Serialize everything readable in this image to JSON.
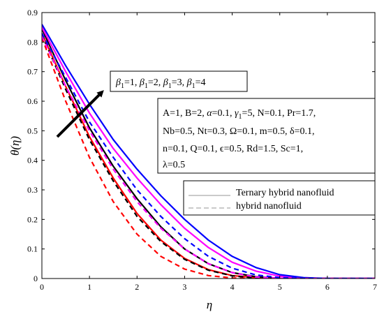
{
  "chart_data": {
    "type": "line",
    "xlabel": "η",
    "ylabel": "θ(η)",
    "xlim": [
      0,
      7
    ],
    "ylim": [
      0,
      0.9
    ],
    "x_ticks": [
      "0",
      "1",
      "2",
      "3",
      "4",
      "5",
      "6",
      "7"
    ],
    "y_ticks": [
      "0",
      "0.1",
      "0.2",
      "0.3",
      "0.4",
      "0.5",
      "0.6",
      "0.7",
      "0.8",
      "0.9"
    ],
    "annotation_beta": "β1=1, β1=2, β1=3, β1=4",
    "annotation_beta_parts": [
      {
        "sym": "β",
        "sub": "1",
        "val": "=1, "
      },
      {
        "sym": "β",
        "sub": "1",
        "val": "=2, "
      },
      {
        "sym": "β",
        "sub": "1",
        "val": "=3, "
      },
      {
        "sym": "β",
        "sub": "1",
        "val": "=4"
      }
    ],
    "params_lines": [
      "A=1, B=2, α=0.1, γ1=5, N=0.1, Pr=1.7,",
      "Nb=0.5, Nt=0.3, Ω=0.1, m=0.5, δ=0.1,",
      "n=0.1, Q=0.1, ϵ=0.5, Rd=1.5, Sc=1,",
      "λ=0.5"
    ],
    "legend": [
      {
        "label": "Ternary hybrid nanofluid",
        "style": "solid"
      },
      {
        "label": "hybrid nanofluid",
        "style": "dashed"
      }
    ],
    "legend_placement": "center-right",
    "grid": false,
    "series": [
      {
        "color": "#ff0000",
        "style": "solid",
        "x": [
          0,
          0.5,
          1,
          1.5,
          2,
          2.5,
          3,
          3.5,
          4,
          4.5,
          5,
          5.5,
          6,
          7
        ],
        "y": [
          0.83,
          0.65,
          0.48,
          0.34,
          0.22,
          0.13,
          0.068,
          0.03,
          0.01,
          0.003,
          0,
          0,
          0,
          0
        ]
      },
      {
        "color": "#000000",
        "style": "solid",
        "x": [
          0,
          0.5,
          1,
          1.5,
          2,
          2.5,
          3,
          3.5,
          4,
          4.5,
          5,
          5.5,
          6,
          7
        ],
        "y": [
          0.845,
          0.67,
          0.51,
          0.38,
          0.27,
          0.175,
          0.1,
          0.05,
          0.02,
          0.006,
          0.001,
          0,
          0,
          0
        ]
      },
      {
        "color": "#ff00ff",
        "style": "solid",
        "x": [
          0,
          0.5,
          1,
          1.5,
          2,
          2.5,
          3,
          3.5,
          4,
          4.5,
          5,
          5.5,
          6,
          7
        ],
        "y": [
          0.85,
          0.7,
          0.56,
          0.44,
          0.34,
          0.25,
          0.17,
          0.105,
          0.055,
          0.025,
          0.008,
          0.002,
          0,
          0
        ]
      },
      {
        "color": "#0000ff",
        "style": "solid",
        "x": [
          0,
          0.5,
          1,
          1.5,
          2,
          2.5,
          3,
          3.5,
          4,
          4.5,
          5,
          5.5,
          6,
          7
        ],
        "y": [
          0.86,
          0.72,
          0.59,
          0.47,
          0.37,
          0.28,
          0.2,
          0.13,
          0.075,
          0.037,
          0.013,
          0.003,
          0,
          0
        ]
      },
      {
        "color": "#ff0000",
        "style": "dashed",
        "x": [
          0,
          0.5,
          1,
          1.5,
          2,
          2.5,
          3,
          3.5,
          4,
          4.5,
          5,
          5.5,
          6,
          7
        ],
        "y": [
          0.815,
          0.6,
          0.41,
          0.26,
          0.15,
          0.075,
          0.032,
          0.01,
          0.002,
          0,
          0,
          0,
          0,
          0
        ]
      },
      {
        "color": "#000000",
        "style": "dashed",
        "x": [
          0,
          0.5,
          1,
          1.5,
          2,
          2.5,
          3,
          3.5,
          4,
          4.5,
          5,
          5.5,
          6,
          7
        ],
        "y": [
          0.825,
          0.64,
          0.47,
          0.33,
          0.21,
          0.125,
          0.065,
          0.028,
          0.009,
          0.002,
          0,
          0,
          0,
          0
        ]
      },
      {
        "color": "#ff00ff",
        "style": "dashed",
        "x": [
          0,
          0.5,
          1,
          1.5,
          2,
          2.5,
          3,
          3.5,
          4,
          4.5,
          5,
          5.5,
          6,
          7
        ],
        "y": [
          0.82,
          0.65,
          0.5,
          0.37,
          0.26,
          0.17,
          0.1,
          0.05,
          0.02,
          0.005,
          0.001,
          0,
          0,
          0
        ]
      },
      {
        "color": "#0000ff",
        "style": "dashed",
        "x": [
          0,
          0.5,
          1,
          1.5,
          2,
          2.5,
          3,
          3.5,
          4,
          4.5,
          5,
          5.5,
          6,
          7
        ],
        "y": [
          0.83,
          0.68,
          0.53,
          0.41,
          0.3,
          0.21,
          0.135,
          0.075,
          0.035,
          0.012,
          0.003,
          0,
          0,
          0
        ]
      }
    ]
  }
}
